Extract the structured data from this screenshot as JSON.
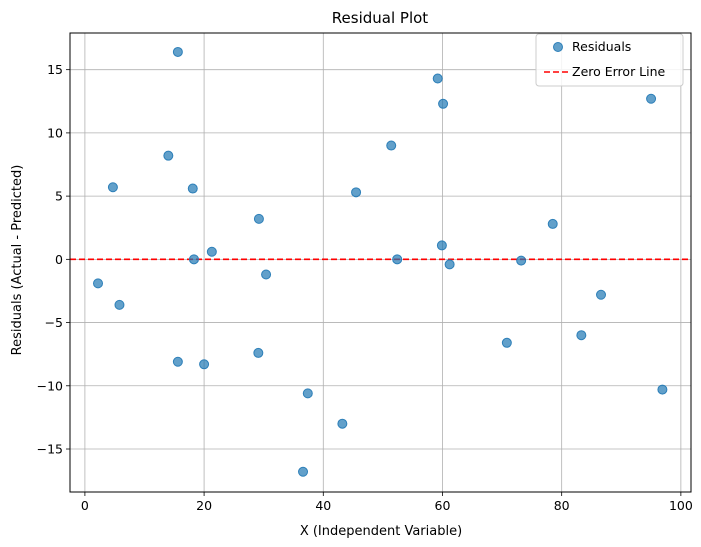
{
  "chart_data": {
    "type": "scatter",
    "title": "Residual Plot",
    "xlabel": "X (Independent Variable)",
    "ylabel": "Residuals (Actual - Predicted)",
    "xlim": [
      -2.5,
      101.7
    ],
    "ylim": [
      -18.4,
      17.9
    ],
    "xticks": [
      0,
      20,
      40,
      60,
      80,
      100
    ],
    "yticks": [
      -15,
      -10,
      -5,
      0,
      5,
      10,
      15
    ],
    "xtick_labels": [
      "0",
      "20",
      "40",
      "60",
      "80",
      "100"
    ],
    "ytick_labels": [
      "−15",
      "−10",
      "−5",
      "0",
      "5",
      "10",
      "15"
    ],
    "grid": true,
    "legend_position": "top-right",
    "series": [
      {
        "name": "Residuals",
        "color": "#1f77b4",
        "points": [
          [
            2.2,
            -1.9
          ],
          [
            4.7,
            5.7
          ],
          [
            5.8,
            -3.6
          ],
          [
            14.0,
            8.2
          ],
          [
            15.6,
            16.4
          ],
          [
            15.6,
            -8.1
          ],
          [
            18.1,
            5.6
          ],
          [
            18.3,
            0.0
          ],
          [
            20.0,
            -8.3
          ],
          [
            21.3,
            0.6
          ],
          [
            29.1,
            -7.4
          ],
          [
            29.2,
            3.2
          ],
          [
            30.4,
            -1.2
          ],
          [
            36.6,
            -16.8
          ],
          [
            37.4,
            -10.6
          ],
          [
            43.2,
            -13.0
          ],
          [
            45.5,
            5.3
          ],
          [
            51.4,
            9.0
          ],
          [
            52.4,
            0.0
          ],
          [
            59.2,
            14.3
          ],
          [
            59.9,
            1.1
          ],
          [
            60.1,
            12.3
          ],
          [
            61.2,
            -0.4
          ],
          [
            70.8,
            -6.6
          ],
          [
            73.2,
            -0.1
          ],
          [
            78.5,
            2.8
          ],
          [
            83.3,
            -6.0
          ],
          [
            86.6,
            -2.8
          ],
          [
            95.0,
            12.7
          ],
          [
            96.9,
            -10.3
          ]
        ]
      },
      {
        "name": "Zero Error Line",
        "color": "#ff0000",
        "style": "dashed",
        "y": 0
      }
    ]
  }
}
